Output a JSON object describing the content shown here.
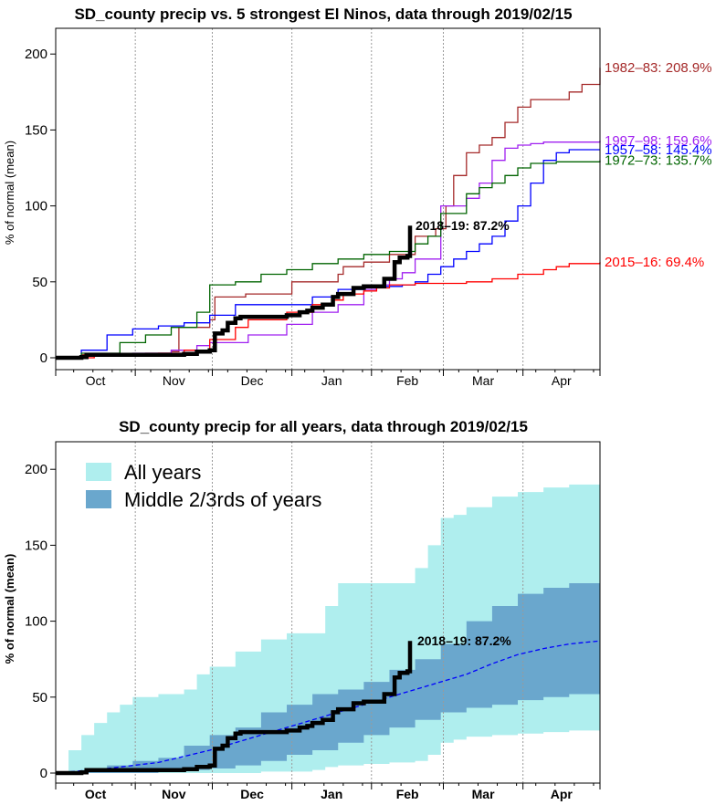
{
  "chart_data": [
    {
      "type": "line",
      "title": "SD_county precip vs. 5 strongest El Ninos, data through 2019/02/15",
      "ylabel": "% of normal (mean)",
      "xlabel": "",
      "months": [
        "Oct",
        "Nov",
        "Dec",
        "Jan",
        "Feb",
        "Mar",
        "Apr"
      ],
      "x_unit": "days since Oct 1",
      "xlim": [
        0,
        212
      ],
      "ylim": [
        0,
        220
      ],
      "yticks": [
        0,
        50,
        100,
        150,
        200
      ],
      "grid": "vertical dotted month boundaries",
      "series": [
        {
          "name": "1982–83: 208.9%",
          "color": "#a52a2a",
          "x": [
            0,
            10,
            35,
            45,
            48,
            60,
            62,
            74,
            92,
            110,
            112,
            120,
            130,
            140,
            148,
            152,
            155,
            160,
            165,
            170,
            175,
            180,
            185,
            195,
            200,
            205,
            212
          ],
          "y": [
            0,
            2,
            3,
            4,
            20,
            25,
            40,
            42,
            50,
            55,
            60,
            63,
            68,
            80,
            85,
            100,
            120,
            135,
            140,
            145,
            155,
            165,
            170,
            170,
            175,
            180,
            191
          ]
        },
        {
          "name": "1997–98: 159.6%",
          "color": "#a020f0",
          "x": [
            0,
            10,
            30,
            45,
            55,
            60,
            75,
            90,
            100,
            110,
            120,
            125,
            130,
            135,
            140,
            150,
            160,
            165,
            170,
            175,
            180,
            185,
            190,
            200,
            212
          ],
          "y": [
            0,
            1,
            3,
            5,
            8,
            10,
            15,
            22,
            30,
            35,
            45,
            48,
            52,
            56,
            65,
            100,
            105,
            115,
            130,
            138,
            140,
            141,
            142,
            142,
            143
          ]
        },
        {
          "name": "1957–58: 145.4%",
          "color": "#0000ff",
          "x": [
            0,
            10,
            20,
            30,
            40,
            50,
            60,
            70,
            80,
            90,
            100,
            110,
            120,
            130,
            135,
            140,
            145,
            150,
            155,
            160,
            165,
            170,
            175,
            180,
            185,
            190,
            195,
            200,
            212
          ],
          "y": [
            0,
            5,
            15,
            19,
            21,
            23,
            28,
            35,
            35,
            35,
            40,
            45,
            47,
            47,
            48,
            50,
            55,
            60,
            65,
            70,
            75,
            80,
            90,
            100,
            115,
            130,
            135,
            137,
            137
          ]
        },
        {
          "name": "1972–73: 135.7%",
          "color": "#006400",
          "x": [
            0,
            10,
            25,
            35,
            45,
            55,
            60,
            70,
            80,
            90,
            100,
            110,
            120,
            130,
            140,
            145,
            150,
            160,
            165,
            170,
            175,
            180,
            185,
            195,
            212
          ],
          "y": [
            0,
            3,
            10,
            15,
            20,
            30,
            48,
            50,
            55,
            58,
            62,
            65,
            68,
            70,
            75,
            80,
            95,
            108,
            112,
            115,
            120,
            125,
            128,
            129,
            130
          ]
        },
        {
          "name": "2015–16: 69.4%",
          "color": "#ff0000",
          "x": [
            0,
            15,
            30,
            40,
            50,
            60,
            70,
            75,
            90,
            100,
            108,
            112,
            120,
            125,
            130,
            140,
            150,
            160,
            170,
            180,
            190,
            195,
            200,
            212
          ],
          "y": [
            0,
            1,
            2,
            3,
            5,
            12,
            20,
            25,
            30,
            35,
            38,
            42,
            44,
            46,
            48,
            49,
            49,
            50,
            52,
            55,
            58,
            60,
            62,
            63
          ]
        },
        {
          "name": "2018–19: 87.2%",
          "color": "#000000",
          "x": [
            0,
            10,
            12,
            50,
            55,
            60,
            62,
            65,
            67,
            70,
            72,
            80,
            88,
            90,
            95,
            98,
            100,
            104,
            108,
            110,
            116,
            120,
            122,
            126,
            128,
            132,
            134,
            137,
            138
          ],
          "y": [
            0,
            0.5,
            2,
            2.5,
            4,
            5,
            16,
            18,
            23,
            26,
            27,
            27,
            27,
            28,
            30,
            31,
            33,
            35,
            40,
            42,
            46,
            47,
            47,
            47,
            52,
            63,
            66,
            67,
            87
          ]
        }
      ],
      "series_labels_y": [
        191,
        143,
        137,
        130,
        63
      ]
    },
    {
      "type": "area",
      "title": "SD_county precip for all years, data through 2019/02/15",
      "ylabel": "% of normal (mean)",
      "xlabel": "",
      "months": [
        "Oct",
        "Nov",
        "Dec",
        "Jan",
        "Feb",
        "Mar",
        "Apr"
      ],
      "x_unit": "days since Oct 1",
      "xlim": [
        0,
        212
      ],
      "ylim": [
        0,
        220
      ],
      "yticks": [
        0,
        50,
        100,
        150,
        200
      ],
      "legend": {
        "position": "top-left",
        "entries": [
          {
            "label": "All years",
            "color": "#afeeee"
          },
          {
            "label": "Middle 2/3rds of years",
            "color": "#6aa7cd"
          }
        ]
      },
      "bands": {
        "all_years": {
          "x": [
            0,
            5,
            10,
            15,
            20,
            25,
            30,
            40,
            50,
            55,
            60,
            70,
            80,
            90,
            100,
            105,
            110,
            120,
            130,
            140,
            145,
            150,
            155,
            160,
            170,
            180,
            190,
            200,
            212
          ],
          "upper": [
            0,
            15,
            25,
            33,
            40,
            45,
            50,
            52,
            55,
            65,
            70,
            80,
            88,
            92,
            92,
            110,
            125,
            125,
            125,
            135,
            150,
            168,
            170,
            175,
            182,
            185,
            188,
            190,
            193
          ],
          "lower": [
            0,
            0,
            0,
            0,
            0,
            0,
            0,
            0,
            0,
            0,
            0,
            0,
            1,
            1,
            2,
            4,
            5,
            6,
            7,
            8,
            12,
            20,
            22,
            24,
            25,
            26,
            27,
            28,
            29
          ]
        },
        "middle_two_thirds": {
          "x": [
            0,
            10,
            20,
            30,
            40,
            50,
            60,
            70,
            80,
            90,
            100,
            110,
            120,
            130,
            140,
            150,
            160,
            170,
            180,
            190,
            200,
            212
          ],
          "upper": [
            0,
            2,
            5,
            8,
            10,
            18,
            25,
            30,
            40,
            45,
            52,
            55,
            60,
            68,
            75,
            85,
            100,
            110,
            118,
            122,
            125,
            126
          ],
          "lower": [
            0,
            0,
            0,
            0,
            1,
            2,
            3,
            5,
            8,
            12,
            15,
            20,
            25,
            30,
            35,
            40,
            43,
            45,
            48,
            50,
            52,
            55
          ]
        }
      },
      "mean_line": {
        "x": [
          0,
          20,
          40,
          60,
          80,
          100,
          110,
          120,
          140,
          160,
          170,
          180,
          190,
          200,
          212
        ],
        "y": [
          0,
          3,
          7,
          15,
          25,
          35,
          40,
          45,
          55,
          65,
          72,
          78,
          82,
          85,
          87
        ]
      },
      "current_label": "2018–19: 87.2%"
    }
  ]
}
